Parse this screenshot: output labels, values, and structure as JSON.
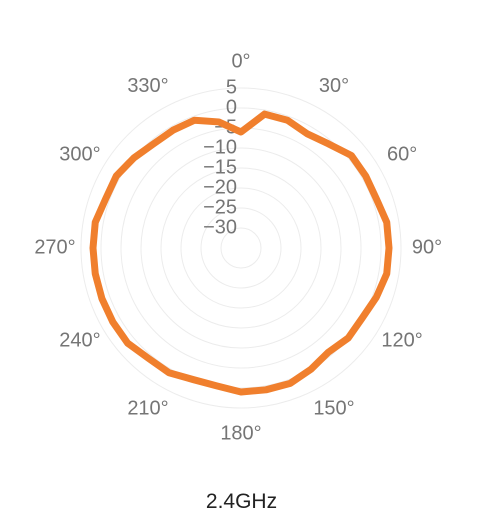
{
  "chart_data": {
    "type": "polar-line",
    "title": "2.4GHz",
    "angle_labels": [
      "0°",
      "30°",
      "60°",
      "90°",
      "120°",
      "150°",
      "180°",
      "210°",
      "240°",
      "270°",
      "300°",
      "330°"
    ],
    "radial_ticks": [
      "5",
      "0",
      "−5",
      "−10",
      "−15",
      "−20",
      "−25",
      "−30"
    ],
    "radial_values": [
      5,
      0,
      -5,
      -10,
      -15,
      -20,
      -25,
      -30
    ],
    "radial_range": [
      -35,
      5
    ],
    "angle_direction": "clockwise",
    "zero_angle": "top",
    "grid": true,
    "series": [
      {
        "color": "#f07f2d",
        "theta": [
          0,
          10,
          20,
          30,
          40,
          50,
          60,
          70,
          80,
          90,
          100,
          110,
          120,
          130,
          140,
          150,
          160,
          170,
          180,
          190,
          200,
          210,
          220,
          230,
          240,
          250,
          260,
          270,
          280,
          290,
          300,
          310,
          320,
          330,
          340,
          350
        ],
        "r": [
          -6,
          -1,
          -1,
          -2,
          -1,
          1,
          1,
          1,
          2,
          2,
          2,
          1,
          0,
          0,
          -1,
          0,
          1,
          1,
          1,
          0,
          0,
          1,
          1,
          2,
          2,
          2,
          2,
          2,
          2,
          1,
          1,
          0,
          -1,
          -1,
          -1,
          -3
        ]
      }
    ]
  }
}
